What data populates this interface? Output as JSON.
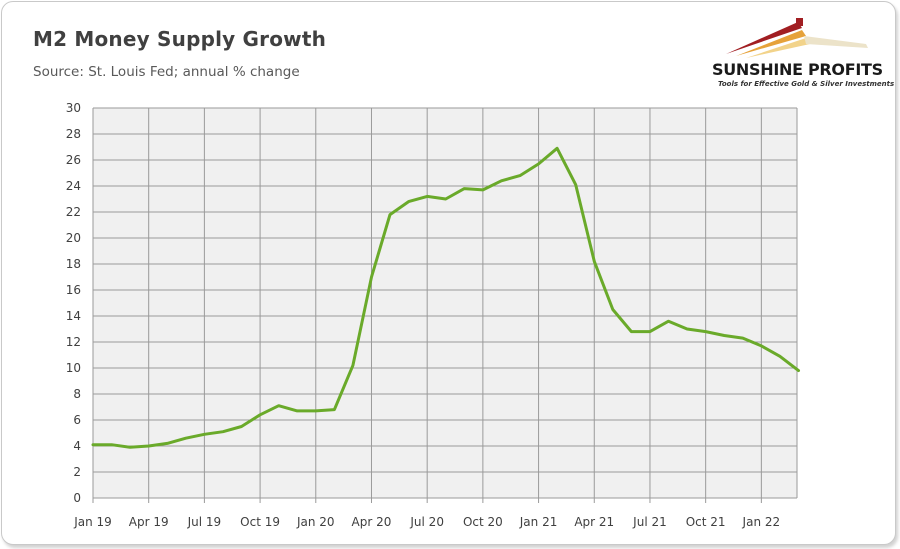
{
  "header": {
    "title": "M2 Money Supply Growth",
    "subtitle": "Source: St. Louis Fed; annual % change"
  },
  "logo": {
    "name": "SUNSHINE PROFITS",
    "tagline": "Tools for Effective Gold & Silver Investments"
  },
  "colors": {
    "line": "#6aaa2a",
    "plot_background": "#f0f0f0",
    "grid": "#9a9a9a"
  },
  "chart_data": {
    "type": "line",
    "title": "M2 Money Supply Growth",
    "subtitle": "Source: St. Louis Fed; annual % change",
    "xlabel": "",
    "ylabel": "",
    "ylim": [
      0,
      30
    ],
    "yticks": [
      0,
      2,
      4,
      6,
      8,
      10,
      12,
      14,
      16,
      18,
      20,
      22,
      24,
      26,
      28,
      30
    ],
    "xtick_labels": [
      "Jan 19",
      "Apr 19",
      "Jul 19",
      "Oct 19",
      "Jan 20",
      "Apr 20",
      "Jul 20",
      "Oct 20",
      "Jan 21",
      "Apr 21",
      "Jul 21",
      "Oct 21",
      "Jan 22"
    ],
    "grid": true,
    "legend": "none",
    "x": [
      "Jan 19",
      "Feb 19",
      "Mar 19",
      "Apr 19",
      "May 19",
      "Jun 19",
      "Jul 19",
      "Aug 19",
      "Sep 19",
      "Oct 19",
      "Nov 19",
      "Dec 19",
      "Jan 20",
      "Feb 20",
      "Mar 20",
      "Apr 20",
      "May 20",
      "Jun 20",
      "Jul 20",
      "Aug 20",
      "Sep 20",
      "Oct 20",
      "Nov 20",
      "Dec 20",
      "Jan 21",
      "Feb 21",
      "Mar 21",
      "Apr 21",
      "May 21",
      "Jun 21",
      "Jul 21",
      "Aug 21",
      "Sep 21",
      "Oct 21",
      "Nov 21",
      "Dec 21",
      "Jan 22",
      "Feb 22",
      "Mar 22"
    ],
    "series": [
      {
        "values": [
          4.1,
          4.1,
          3.9,
          4.0,
          4.2,
          4.6,
          4.9,
          5.1,
          5.5,
          6.4,
          7.1,
          6.7,
          6.7,
          6.8,
          10.2,
          17.0,
          21.8,
          22.8,
          23.2,
          23.0,
          23.8,
          23.7,
          24.4,
          24.8,
          25.7,
          26.9,
          24.1,
          18.2,
          14.5,
          12.8,
          12.8,
          13.6,
          13.0,
          12.8,
          12.5,
          12.3,
          11.7,
          10.9,
          9.8
        ]
      }
    ]
  }
}
